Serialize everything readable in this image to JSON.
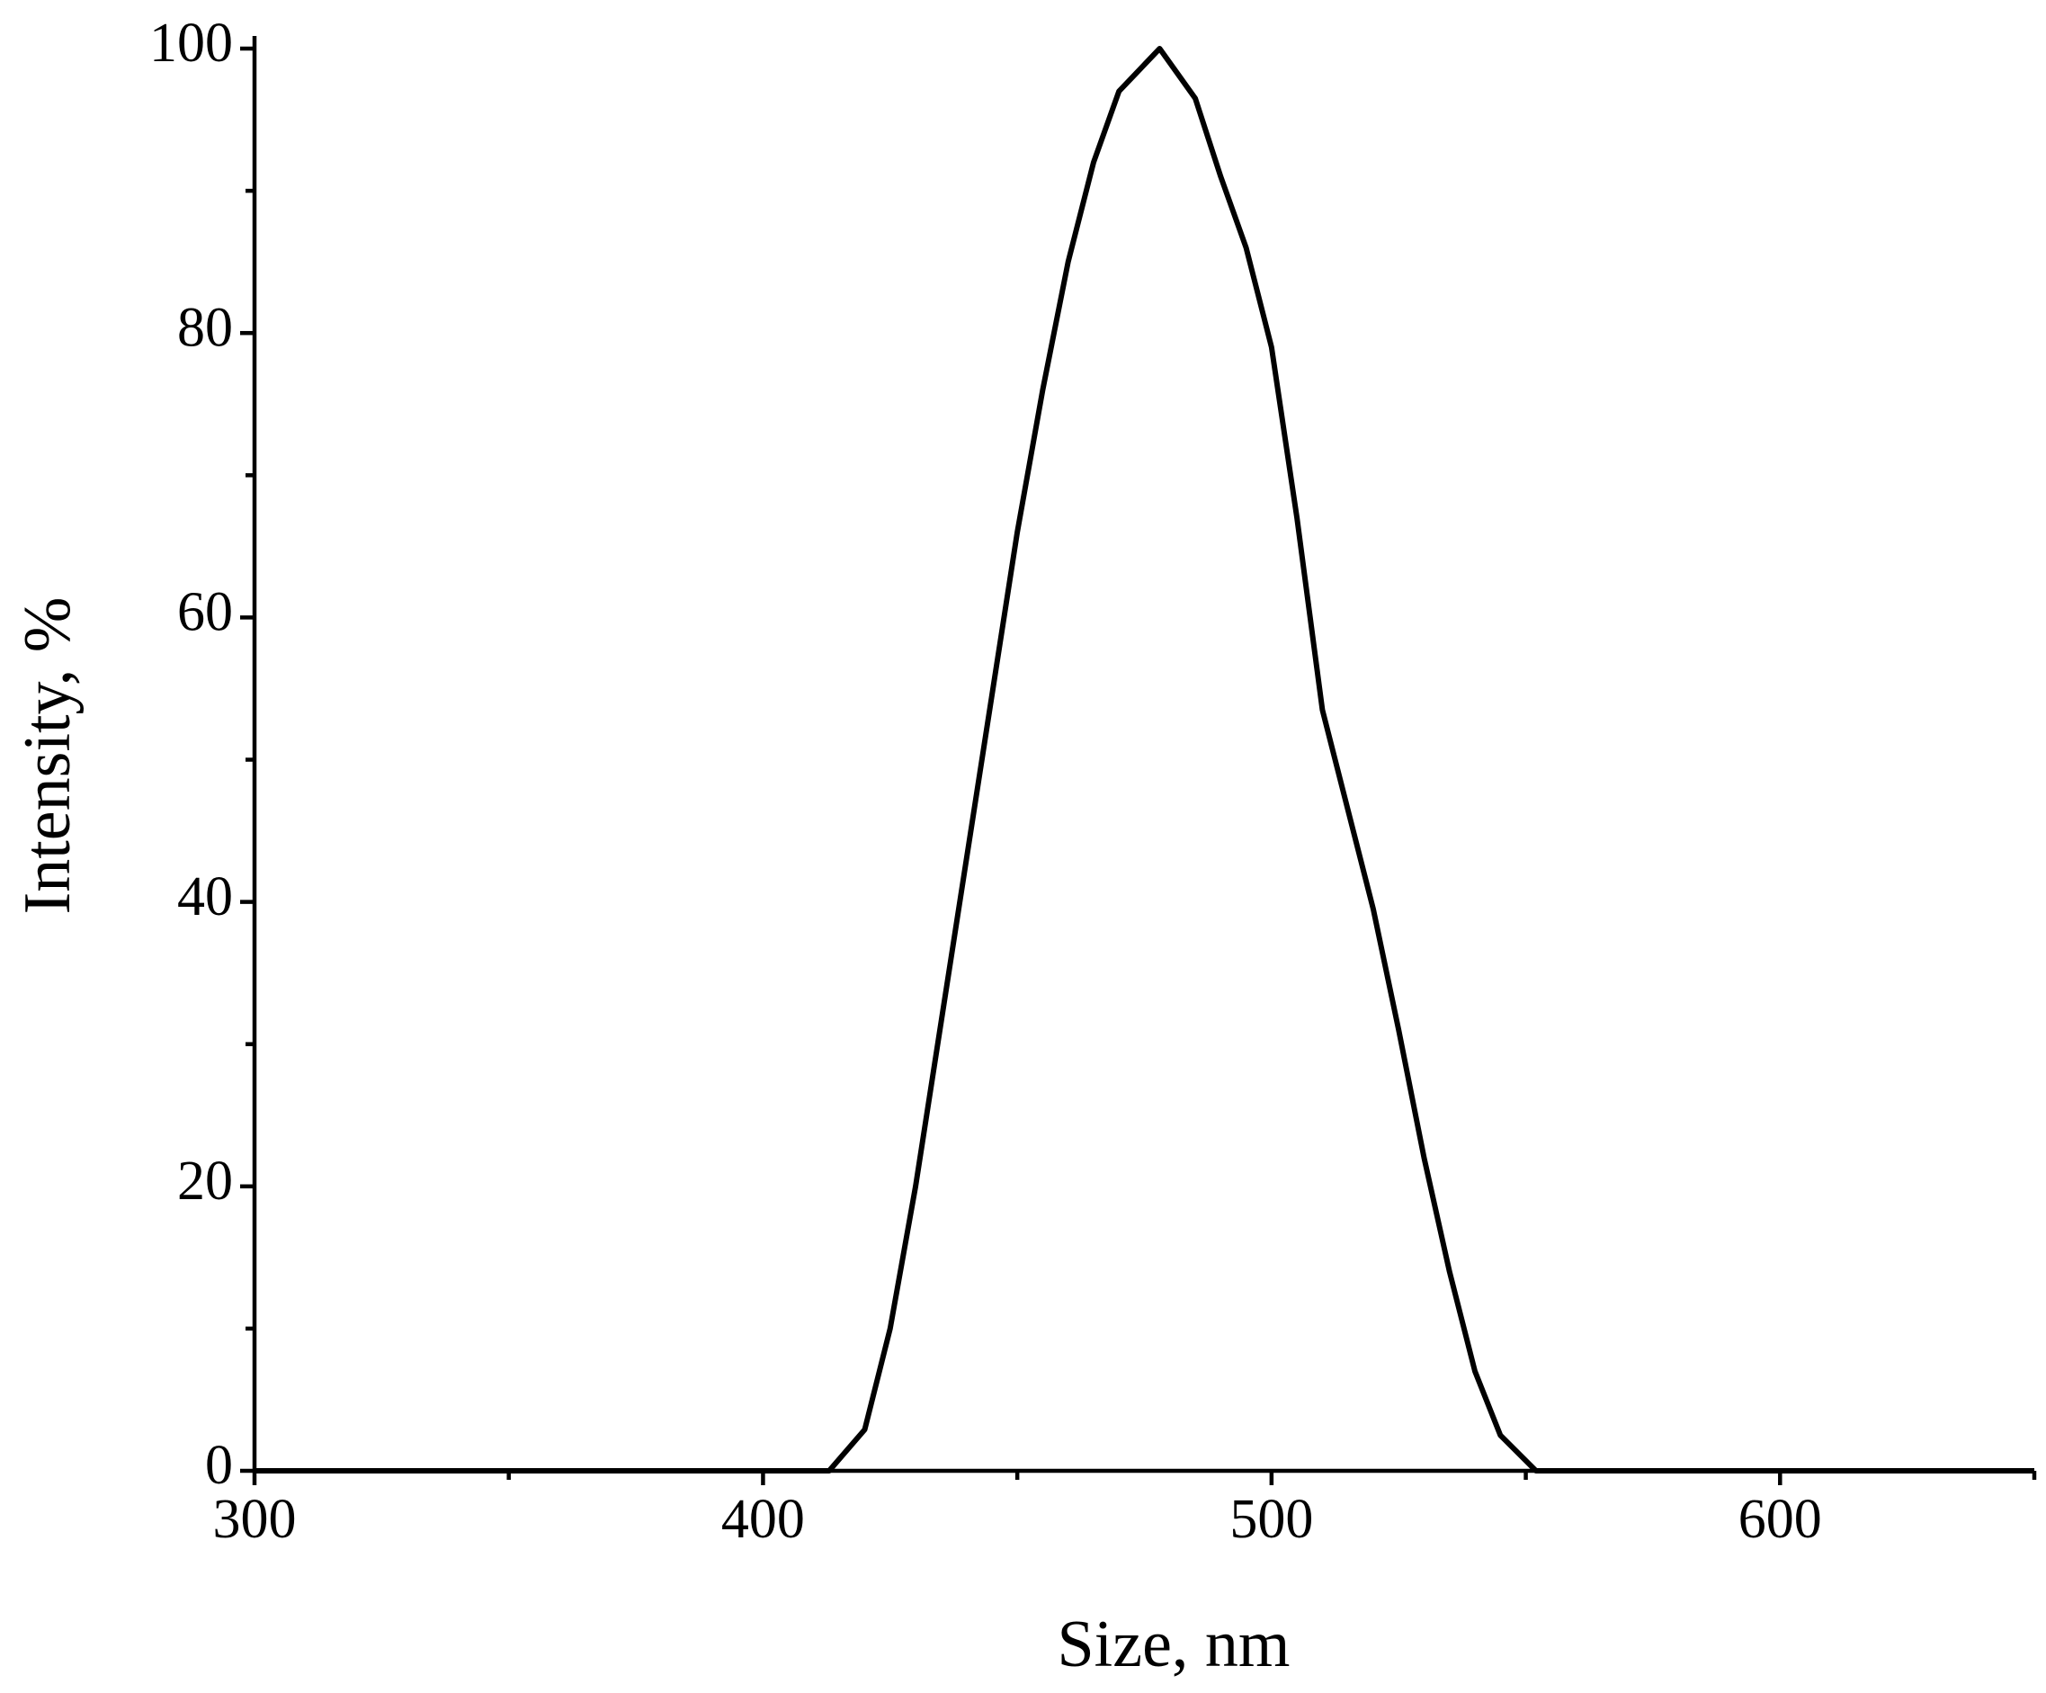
{
  "chart_data": {
    "type": "line",
    "xlabel": "Size, nm",
    "ylabel": "Intensity, %",
    "x": [
      300,
      413,
      420,
      425,
      430,
      435,
      440,
      450,
      455,
      460,
      465,
      470,
      478,
      485,
      490,
      495,
      500,
      505,
      510,
      515,
      520,
      525,
      530,
      535,
      540,
      545,
      552,
      650
    ],
    "series": [
      {
        "color": "#000000",
        "values": [
          0,
          0,
          2.9,
          10,
          20,
          31.5,
          43,
          66,
          76,
          85,
          92,
          97,
          100,
          96.5,
          91,
          86,
          79,
          67,
          53.5,
          46.5,
          39.5,
          31,
          22,
          14,
          7,
          2.5,
          0,
          0
        ]
      }
    ],
    "xlim": [
      300,
      650
    ],
    "ylim": [
      0,
      100
    ],
    "xticks": [
      300,
      400,
      500,
      600
    ],
    "xminorticks": [
      350,
      450,
      550,
      650
    ],
    "yticks": [
      0,
      20,
      40,
      60,
      80,
      100
    ],
    "yminorticks": [
      10,
      30,
      50,
      70,
      90
    ],
    "grid": false
  }
}
